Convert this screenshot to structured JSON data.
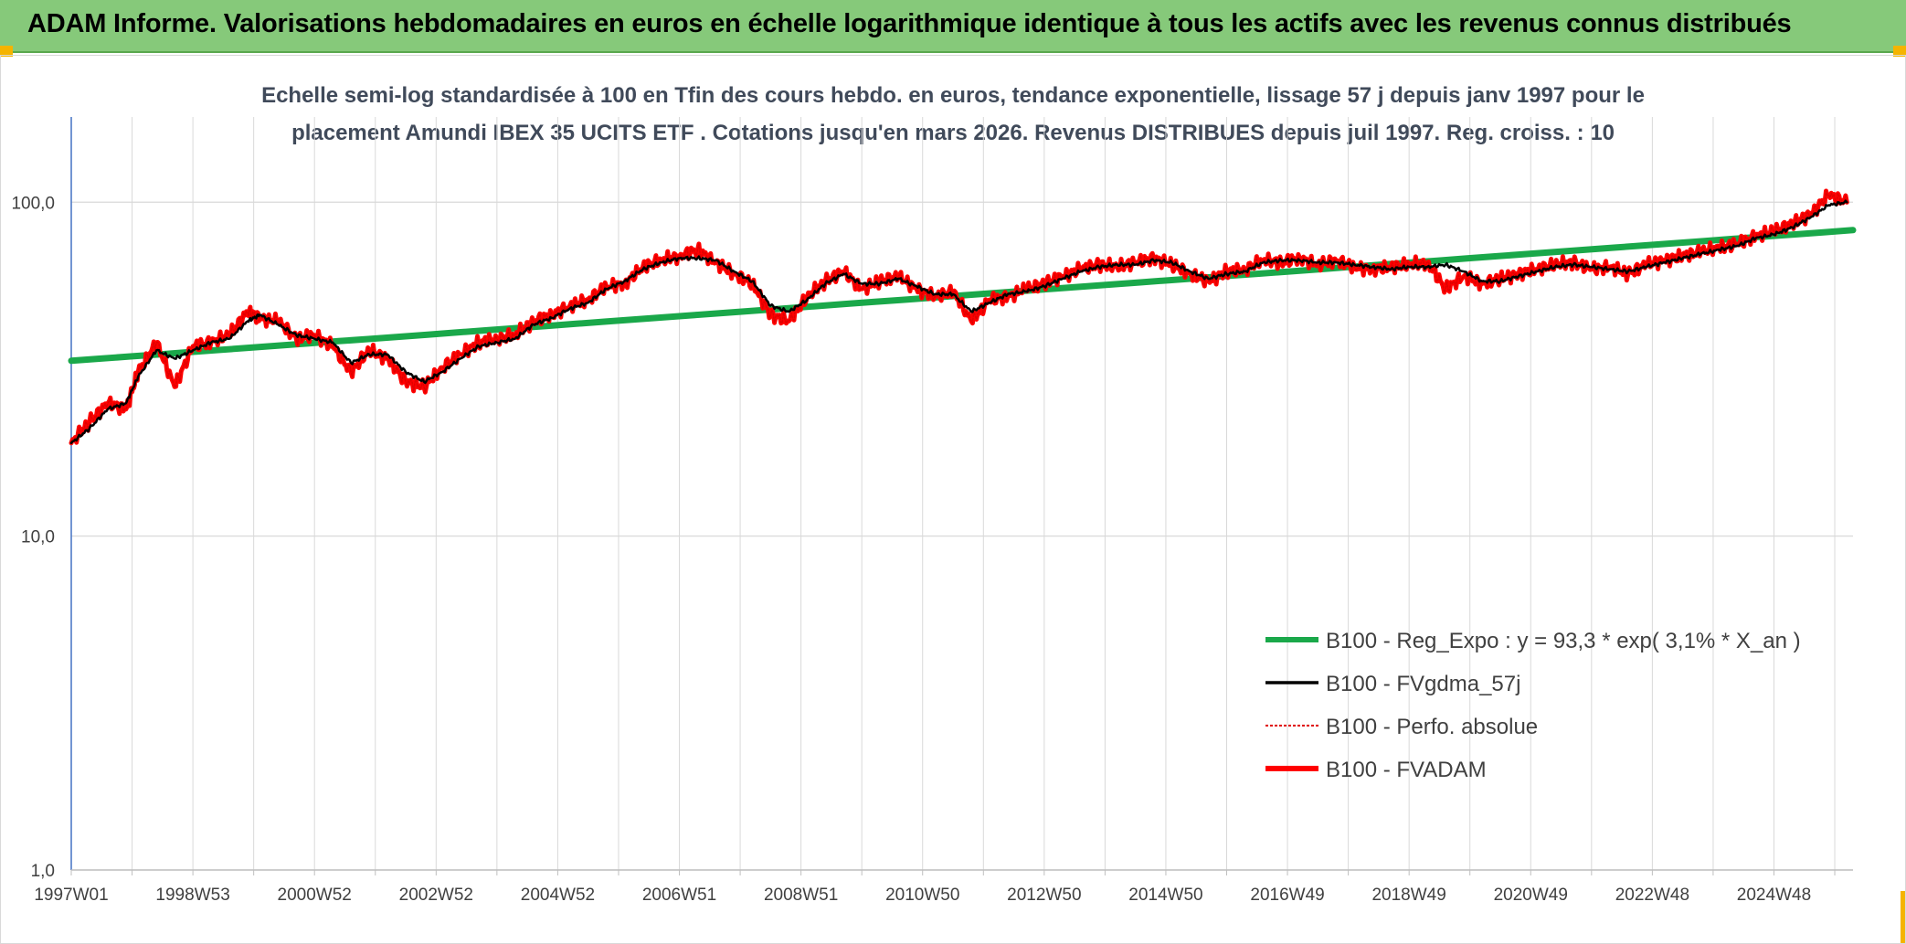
{
  "banner": {
    "title": "ADAM Informe. Valorisations hebdomadaires en euros en échelle logarithmique identique à tous les actifs avec les revenus connus distribués"
  },
  "colors": {
    "banner_bg": "#86c97a",
    "regression": "#1aa84a",
    "fvgdma": "#000000",
    "perfo": "#e00000",
    "fvadam": "#ff0000",
    "grid": "#d9d9d9",
    "axis": "#4472c4",
    "corner": "#f5b400"
  },
  "chart_data": {
    "type": "line",
    "title_line1": "Echelle semi-log standardisée à 100 en Tfin des cours hebdo. en euros, tendance exponentielle, lissage 57 j depuis janv 1997 pour le",
    "title_line2": "placement Amundi IBEX 35 UCITS ETF . Cotations jusqu'en mars 2026. Revenus DISTRIBUES depuis juil 1997. Reg. croiss. : 10",
    "y_scale": "log",
    "ylim": [
      1,
      180
    ],
    "xlim": [
      1997.0,
      2026.3
    ],
    "y_ticks": [
      {
        "value": 100,
        "label": "100,0"
      },
      {
        "value": 10,
        "label": "10,0"
      },
      {
        "value": 1,
        "label": "1,0"
      }
    ],
    "x_ticks": [
      {
        "value": 1997.0,
        "label": "1997W01"
      },
      {
        "value": 1999.0,
        "label": "1998W53"
      },
      {
        "value": 2001.0,
        "label": "2000W52"
      },
      {
        "value": 2003.0,
        "label": "2002W52"
      },
      {
        "value": 2005.0,
        "label": "2004W52"
      },
      {
        "value": 2007.0,
        "label": "2006W51"
      },
      {
        "value": 2009.0,
        "label": "2008W51"
      },
      {
        "value": 2011.0,
        "label": "2010W50"
      },
      {
        "value": 2013.0,
        "label": "2012W50"
      },
      {
        "value": 2015.0,
        "label": "2014W50"
      },
      {
        "value": 2017.0,
        "label": "2016W49"
      },
      {
        "value": 2019.0,
        "label": "2018W49"
      },
      {
        "value": 2021.0,
        "label": "2020W49"
      },
      {
        "value": 2023.0,
        "label": "2022W48"
      },
      {
        "value": 2025.0,
        "label": "2024W48"
      }
    ],
    "minor_x_grid": [
      1998.0,
      2000.0,
      2002.0,
      2004.0,
      2006.0,
      2008.0,
      2010.0,
      2012.0,
      2014.0,
      2016.0,
      2018.0,
      2020.0,
      2022.0,
      2024.0,
      2026.0
    ],
    "legend_position": "bottom-right",
    "series": [
      {
        "name": "B100 - Reg_Expo : y = 93,3 * exp( 3,1% *  X_an )",
        "style": "regression",
        "x": [
          1997.0,
          2026.3
        ],
        "y": [
          33.5,
          82.5
        ]
      },
      {
        "name": "B100 - FVgdma_57j",
        "style": "fvgdma",
        "x": [
          1997.0,
          1997.3,
          1997.6,
          1997.9,
          1998.1,
          1998.4,
          1998.7,
          1999.0,
          1999.3,
          1999.6,
          1999.9,
          2000.1,
          2000.4,
          2000.7,
          2001.0,
          2001.3,
          2001.6,
          2001.9,
          2002.2,
          2002.5,
          2002.8,
          2003.1,
          2003.4,
          2003.7,
          2004.0,
          2004.3,
          2004.6,
          2004.9,
          2005.2,
          2005.5,
          2005.8,
          2006.1,
          2006.4,
          2006.7,
          2007.0,
          2007.3,
          2007.6,
          2007.9,
          2008.2,
          2008.5,
          2008.8,
          2009.1,
          2009.4,
          2009.7,
          2010.0,
          2010.3,
          2010.6,
          2010.9,
          2011.2,
          2011.5,
          2011.8,
          2012.1,
          2012.4,
          2012.7,
          2013.0,
          2013.3,
          2013.6,
          2013.9,
          2014.2,
          2014.5,
          2014.8,
          2015.1,
          2015.4,
          2015.7,
          2016.0,
          2016.3,
          2016.6,
          2016.9,
          2017.2,
          2017.5,
          2017.8,
          2018.1,
          2018.4,
          2018.7,
          2019.0,
          2019.3,
          2019.6,
          2019.9,
          2020.2,
          2020.5,
          2020.8,
          2021.1,
          2021.4,
          2021.7,
          2022.0,
          2022.3,
          2022.6,
          2022.9,
          2023.2,
          2023.5,
          2023.8,
          2024.1,
          2024.4,
          2024.7,
          2025.0,
          2025.3,
          2025.6,
          2025.9,
          2026.2
        ],
        "y": [
          19,
          21,
          24,
          25,
          30,
          36,
          34,
          36,
          38,
          39,
          44,
          46,
          43,
          40,
          39,
          38,
          33,
          35,
          35,
          31,
          29,
          31,
          34,
          37,
          38,
          39,
          43,
          45,
          48,
          50,
          55,
          58,
          63,
          66,
          68,
          68,
          67,
          62,
          58,
          49,
          47,
          51,
          57,
          61,
          57,
          57,
          59,
          56,
          53,
          53,
          47,
          50,
          53,
          54,
          56,
          59,
          62,
          64,
          65,
          65,
          67,
          66,
          62,
          59,
          61,
          62,
          66,
          67,
          67,
          66,
          66,
          65,
          64,
          63,
          64,
          64,
          65,
          62,
          58,
          58,
          60,
          62,
          64,
          65,
          64,
          63,
          62,
          64,
          66,
          68,
          70,
          72,
          74,
          78,
          80,
          84,
          90,
          98,
          100
        ]
      },
      {
        "name": "B100 - Perfo. absolue",
        "style": "perfo",
        "x": [
          1997.0,
          1997.3,
          1997.6,
          1997.9,
          1998.1,
          1998.4,
          1998.7,
          1999.0,
          1999.3,
          1999.6,
          1999.9,
          2000.1,
          2000.4,
          2000.7,
          2001.0,
          2001.3,
          2001.6,
          2001.9,
          2002.2,
          2002.5,
          2002.8,
          2003.1,
          2003.4,
          2003.7,
          2004.0,
          2004.3,
          2004.6,
          2004.9,
          2005.2,
          2005.5,
          2005.8,
          2006.1,
          2006.4,
          2006.7,
          2007.0,
          2007.3,
          2007.6,
          2007.9,
          2008.2,
          2008.5,
          2008.8,
          2009.1,
          2009.4,
          2009.7,
          2010.0,
          2010.3,
          2010.6,
          2010.9,
          2011.2,
          2011.5,
          2011.8,
          2012.1,
          2012.4,
          2012.7,
          2013.0,
          2013.3,
          2013.6,
          2013.9,
          2014.2,
          2014.5,
          2014.8,
          2015.1,
          2015.4,
          2015.7,
          2016.0,
          2016.3,
          2016.6,
          2016.9,
          2017.2,
          2017.5,
          2017.8,
          2018.1,
          2018.4,
          2018.7,
          2019.0,
          2019.3,
          2019.6,
          2019.9,
          2020.2,
          2020.5,
          2020.8,
          2021.1,
          2021.4,
          2021.7,
          2022.0,
          2022.3,
          2022.6,
          2022.9,
          2023.2,
          2023.5,
          2023.8,
          2024.1,
          2024.4,
          2024.7,
          2025.0,
          2025.3,
          2025.6,
          2025.9,
          2026.2
        ],
        "y": [
          19,
          22,
          25,
          24,
          31,
          38,
          28,
          37,
          38,
          40,
          47,
          45,
          44,
          39,
          40,
          37,
          31,
          36,
          34,
          29,
          28,
          32,
          35,
          38,
          39,
          40,
          44,
          46,
          49,
          51,
          56,
          57,
          64,
          67,
          69,
          72,
          66,
          61,
          57,
          46,
          44,
          52,
          58,
          62,
          55,
          58,
          60,
          55,
          52,
          54,
          44,
          51,
          52,
          55,
          57,
          60,
          63,
          65,
          64,
          66,
          68,
          65,
          61,
          58,
          62,
          63,
          67,
          66,
          68,
          65,
          67,
          64,
          63,
          64,
          65,
          66,
          55,
          60,
          57,
          59,
          61,
          63,
          65,
          66,
          63,
          64,
          61,
          65,
          67,
          69,
          71,
          73,
          75,
          79,
          82,
          86,
          92,
          105,
          100
        ]
      },
      {
        "name": "B100 - FVADAM",
        "style": "fvadam",
        "x": [
          1997.0,
          1997.3,
          1997.6,
          1997.9,
          1998.1,
          1998.4,
          1998.7,
          1999.0,
          1999.3,
          1999.6,
          1999.9,
          2000.1,
          2000.4,
          2000.7,
          2001.0,
          2001.3,
          2001.6,
          2001.9,
          2002.2,
          2002.5,
          2002.8,
          2003.1,
          2003.4,
          2003.7,
          2004.0,
          2004.3,
          2004.6,
          2004.9,
          2005.2,
          2005.5,
          2005.8,
          2006.1,
          2006.4,
          2006.7,
          2007.0,
          2007.3,
          2007.6,
          2007.9,
          2008.2,
          2008.5,
          2008.8,
          2009.1,
          2009.4,
          2009.7,
          2010.0,
          2010.3,
          2010.6,
          2010.9,
          2011.2,
          2011.5,
          2011.8,
          2012.1,
          2012.4,
          2012.7,
          2013.0,
          2013.3,
          2013.6,
          2013.9,
          2014.2,
          2014.5,
          2014.8,
          2015.1,
          2015.4,
          2015.7,
          2016.0,
          2016.3,
          2016.6,
          2016.9,
          2017.2,
          2017.5,
          2017.8,
          2018.1,
          2018.4,
          2018.7,
          2019.0,
          2019.3,
          2019.6,
          2019.9,
          2020.2,
          2020.5,
          2020.8,
          2021.1,
          2021.4,
          2021.7,
          2022.0,
          2022.3,
          2022.6,
          2022.9,
          2023.2,
          2023.5,
          2023.8,
          2024.1,
          2024.4,
          2024.7,
          2025.0,
          2025.3,
          2025.6,
          2025.9,
          2026.2
        ],
        "y": [
          19,
          22,
          25,
          24,
          31,
          38,
          28,
          37,
          38,
          40,
          47,
          45,
          44,
          39,
          40,
          37,
          31,
          36,
          34,
          29,
          28,
          32,
          35,
          38,
          39,
          40,
          44,
          46,
          49,
          51,
          56,
          57,
          64,
          67,
          69,
          72,
          66,
          61,
          57,
          46,
          44,
          52,
          58,
          62,
          55,
          58,
          60,
          55,
          52,
          54,
          44,
          51,
          52,
          55,
          57,
          60,
          63,
          65,
          64,
          66,
          68,
          65,
          61,
          58,
          62,
          63,
          67,
          66,
          68,
          65,
          67,
          64,
          63,
          64,
          65,
          66,
          55,
          60,
          57,
          59,
          61,
          63,
          65,
          66,
          63,
          64,
          61,
          65,
          67,
          69,
          71,
          73,
          75,
          79,
          82,
          86,
          92,
          105,
          100
        ]
      }
    ]
  }
}
